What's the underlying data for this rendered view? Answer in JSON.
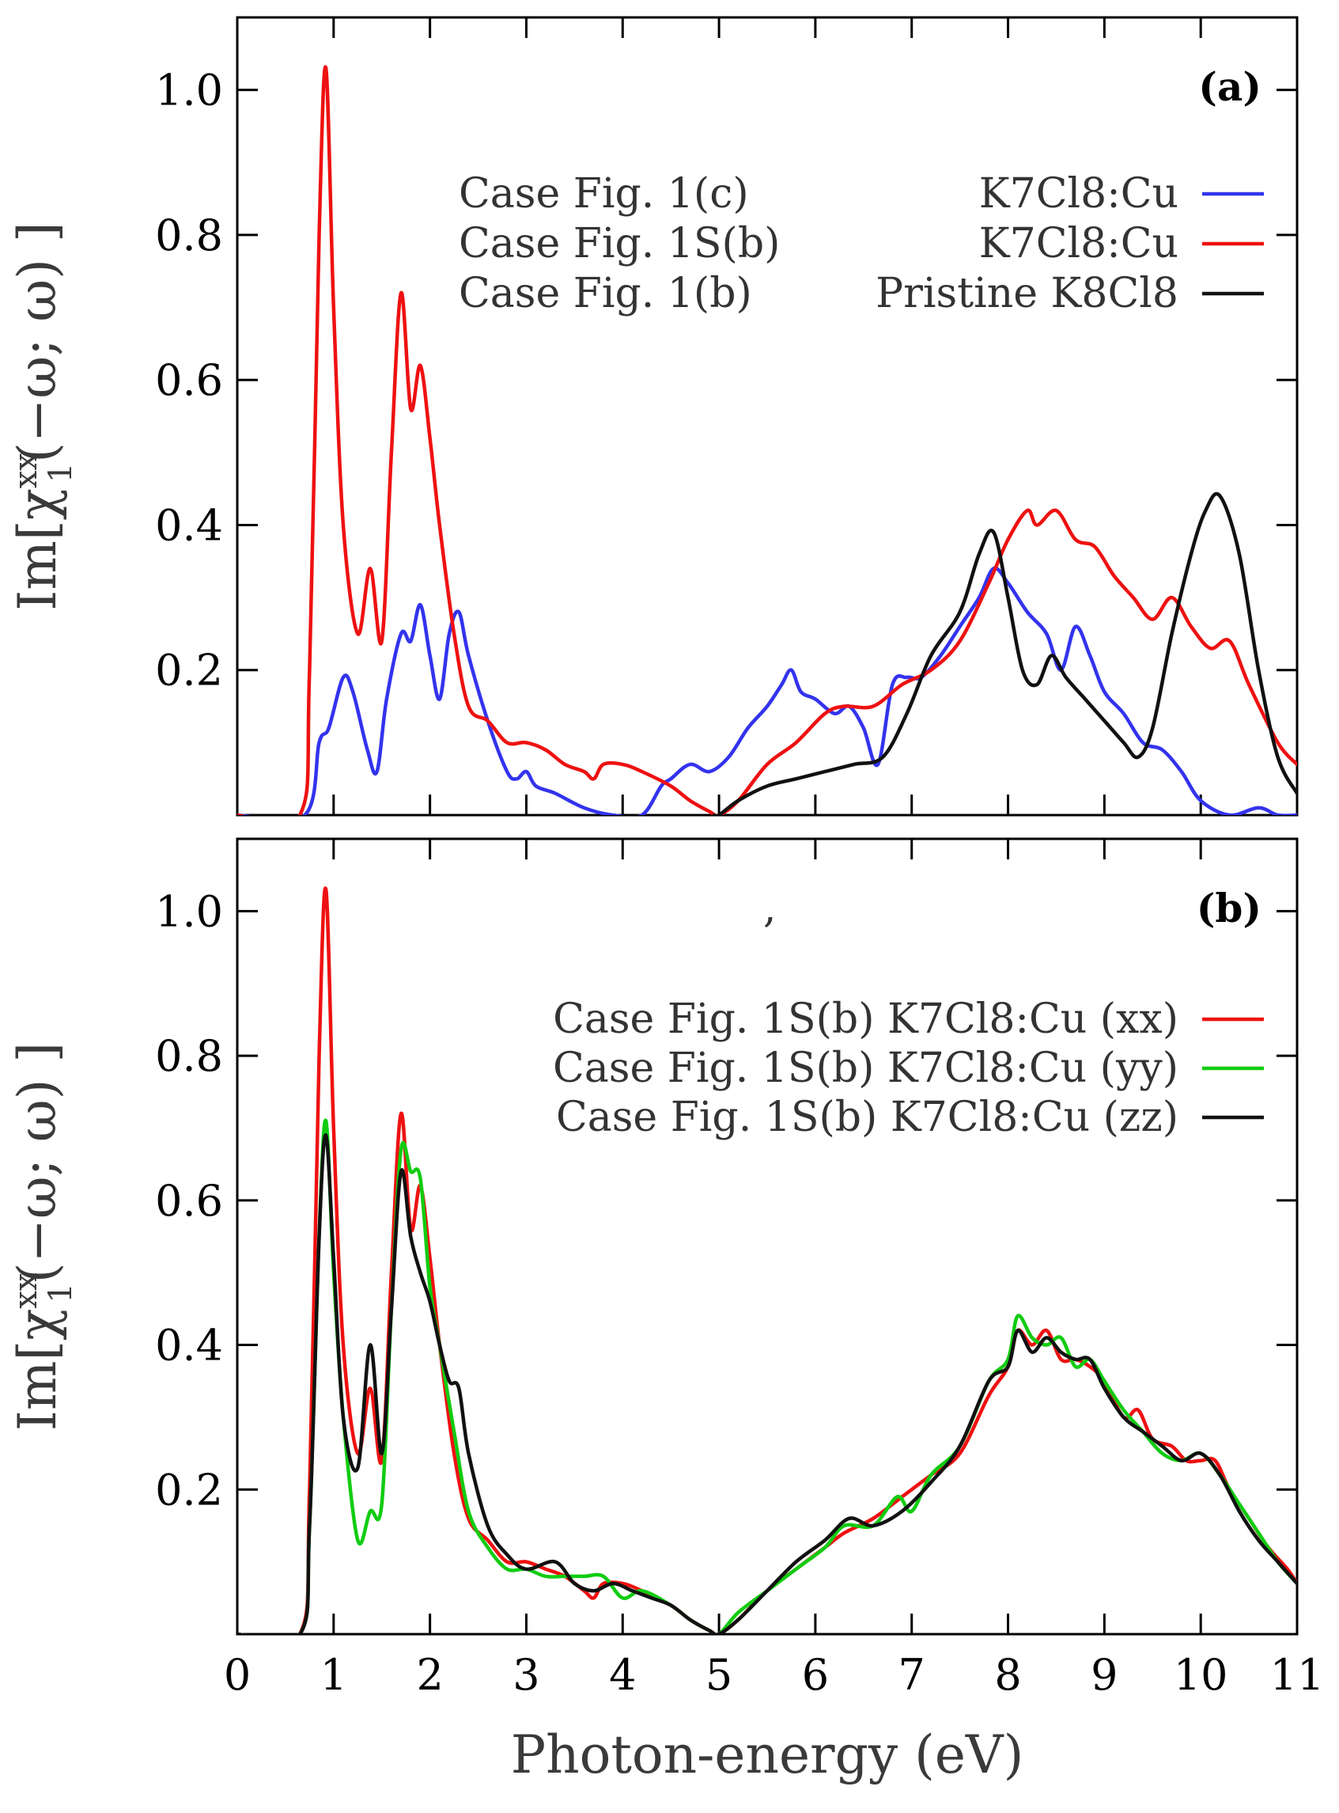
{
  "chart_data": [
    {
      "type": "line",
      "panel_label": "(a)",
      "xlim": [
        0,
        11
      ],
      "ylim": [
        0,
        1.1
      ],
      "ylabel_lines": [
        "Im[χ",
        "xx",
        "1",
        "(−ω; ω) ]"
      ],
      "yticks": [
        0.2,
        0.4,
        0.6,
        0.8,
        1.0
      ],
      "ytick_labels": [
        "0.2",
        "0.4",
        "0.6",
        "0.8",
        "1.0"
      ],
      "legend_position": "top-right",
      "series": [
        {
          "name": "Case Fig. 1(c) K7Cl8:Cu",
          "legend_case": "Case Fig. 1(c)",
          "legend_material": "K7Cl8:Cu",
          "color": "#3333ee",
          "x": [
            0,
            0.7,
            0.85,
            0.95,
            1.1,
            1.2,
            1.35,
            1.45,
            1.55,
            1.7,
            1.8,
            1.9,
            2.0,
            2.1,
            2.2,
            2.3,
            2.4,
            2.6,
            2.8,
            2.9,
            3.0,
            3.1,
            3.3,
            3.6,
            3.9,
            4.2,
            4.4,
            4.5,
            4.7,
            4.9,
            5.1,
            5.3,
            5.5,
            5.65,
            5.75,
            5.85,
            6.0,
            6.2,
            6.35,
            6.5,
            6.65,
            6.8,
            6.95,
            7.1,
            7.3,
            7.5,
            7.7,
            7.85,
            8.0,
            8.2,
            8.4,
            8.55,
            8.7,
            8.85,
            9.0,
            9.2,
            9.4,
            9.6,
            9.8,
            10.0,
            10.3,
            10.6,
            10.8,
            11.0
          ],
          "y": [
            0,
            0,
            0.1,
            0.12,
            0.19,
            0.17,
            0.09,
            0.06,
            0.16,
            0.25,
            0.24,
            0.29,
            0.22,
            0.16,
            0.25,
            0.28,
            0.22,
            0.13,
            0.06,
            0.05,
            0.06,
            0.04,
            0.03,
            0.01,
            0.0,
            0.0,
            0.04,
            0.05,
            0.07,
            0.06,
            0.08,
            0.12,
            0.15,
            0.18,
            0.2,
            0.17,
            0.16,
            0.14,
            0.15,
            0.12,
            0.07,
            0.18,
            0.19,
            0.19,
            0.22,
            0.26,
            0.3,
            0.34,
            0.32,
            0.28,
            0.25,
            0.2,
            0.26,
            0.22,
            0.17,
            0.14,
            0.1,
            0.09,
            0.06,
            0.02,
            0.0,
            0.01,
            0.0,
            0.0
          ]
        },
        {
          "name": "Case Fig. 1S(b) K7Cl8:Cu",
          "legend_case": "Case Fig. 1S(b)",
          "legend_material": "K7Cl8:Cu",
          "color": "#ee1111",
          "x": [
            0,
            0.65,
            0.75,
            0.85,
            0.92,
            1.0,
            1.1,
            1.25,
            1.38,
            1.5,
            1.6,
            1.7,
            1.8,
            1.9,
            2.0,
            2.1,
            2.25,
            2.4,
            2.6,
            2.8,
            3.0,
            3.2,
            3.4,
            3.6,
            3.7,
            3.8,
            4.0,
            4.2,
            4.5,
            4.7,
            4.9,
            5.0,
            5.2,
            5.5,
            5.8,
            6.1,
            6.3,
            6.6,
            6.9,
            7.2,
            7.5,
            7.8,
            8.0,
            8.2,
            8.3,
            8.5,
            8.7,
            8.9,
            9.1,
            9.3,
            9.5,
            9.7,
            9.9,
            10.1,
            10.3,
            10.5,
            10.8,
            11.0
          ],
          "y": [
            0,
            0,
            0.2,
            0.8,
            1.03,
            0.7,
            0.4,
            0.25,
            0.34,
            0.24,
            0.5,
            0.72,
            0.56,
            0.62,
            0.52,
            0.4,
            0.25,
            0.15,
            0.13,
            0.1,
            0.1,
            0.09,
            0.07,
            0.06,
            0.05,
            0.07,
            0.07,
            0.06,
            0.04,
            0.02,
            0.005,
            0.0,
            0.02,
            0.07,
            0.1,
            0.14,
            0.15,
            0.15,
            0.18,
            0.2,
            0.24,
            0.32,
            0.38,
            0.42,
            0.4,
            0.42,
            0.38,
            0.37,
            0.33,
            0.3,
            0.27,
            0.3,
            0.26,
            0.23,
            0.24,
            0.18,
            0.1,
            0.07
          ]
        },
        {
          "name": "Case Fig. 1(b) Pristine K8Cl8",
          "legend_case": "Case Fig. 1(b)",
          "legend_material": "Pristine K8Cl8",
          "color": "#111111",
          "x": [
            4.95,
            5.0,
            5.2,
            5.5,
            5.8,
            6.1,
            6.4,
            6.7,
            6.95,
            7.2,
            7.5,
            7.7,
            7.85,
            8.0,
            8.15,
            8.3,
            8.45,
            8.6,
            8.8,
            9.0,
            9.2,
            9.35,
            9.5,
            9.7,
            9.9,
            10.05,
            10.2,
            10.4,
            10.6,
            10.8,
            11.0
          ],
          "y": [
            0,
            0.0,
            0.02,
            0.04,
            0.05,
            0.06,
            0.07,
            0.08,
            0.14,
            0.22,
            0.28,
            0.36,
            0.39,
            0.3,
            0.2,
            0.18,
            0.22,
            0.19,
            0.16,
            0.13,
            0.1,
            0.08,
            0.12,
            0.25,
            0.36,
            0.42,
            0.44,
            0.36,
            0.2,
            0.08,
            0.03
          ]
        }
      ]
    },
    {
      "type": "line",
      "panel_label": "(b)",
      "stray_mark": ",",
      "xlim": [
        0,
        11
      ],
      "ylim": [
        0,
        1.1
      ],
      "xlabel": "Photon-energy (eV)",
      "xticks": [
        0,
        1,
        2,
        3,
        4,
        5,
        6,
        7,
        8,
        9,
        10,
        11
      ],
      "xtick_labels": [
        "0",
        "1",
        "2",
        "3",
        "4",
        "5",
        "6",
        "7",
        "8",
        "9",
        "10",
        "11"
      ],
      "ylabel_lines": [
        "Im[χ",
        "xx",
        "1",
        "(−ω; ω) ]"
      ],
      "yticks": [
        0.2,
        0.4,
        0.6,
        0.8,
        1.0
      ],
      "ytick_labels": [
        "0.2",
        "0.4",
        "0.6",
        "0.8",
        "1.0"
      ],
      "legend_position": "top-right",
      "series": [
        {
          "name": "Case Fig. 1S(b) K7Cl8:Cu (xx)",
          "legend_case": "Case Fig. 1S(b)",
          "legend_material": "K7Cl8:Cu (xx)",
          "color": "#ee1111",
          "x": [
            0,
            0.65,
            0.75,
            0.85,
            0.92,
            1.0,
            1.1,
            1.25,
            1.38,
            1.5,
            1.6,
            1.7,
            1.8,
            1.9,
            2.0,
            2.1,
            2.25,
            2.4,
            2.6,
            2.8,
            3.0,
            3.2,
            3.4,
            3.6,
            3.7,
            3.8,
            4.0,
            4.2,
            4.5,
            4.7,
            4.9,
            5.0,
            5.2,
            5.5,
            5.8,
            6.1,
            6.3,
            6.6,
            6.9,
            7.2,
            7.5,
            7.8,
            8.0,
            8.1,
            8.25,
            8.4,
            8.55,
            8.7,
            8.85,
            9.0,
            9.2,
            9.35,
            9.5,
            9.7,
            9.85,
            10.0,
            10.15,
            10.3,
            10.5,
            10.7,
            10.9,
            11.0
          ],
          "y": [
            0,
            0,
            0.2,
            0.8,
            1.03,
            0.7,
            0.4,
            0.25,
            0.34,
            0.24,
            0.5,
            0.72,
            0.56,
            0.62,
            0.52,
            0.4,
            0.25,
            0.16,
            0.13,
            0.1,
            0.1,
            0.09,
            0.08,
            0.06,
            0.05,
            0.07,
            0.07,
            0.06,
            0.04,
            0.02,
            0.005,
            0.0,
            0.02,
            0.06,
            0.09,
            0.12,
            0.14,
            0.16,
            0.19,
            0.22,
            0.25,
            0.33,
            0.37,
            0.42,
            0.4,
            0.42,
            0.38,
            0.38,
            0.37,
            0.35,
            0.3,
            0.31,
            0.27,
            0.26,
            0.24,
            0.24,
            0.24,
            0.2,
            0.16,
            0.12,
            0.09,
            0.07
          ]
        },
        {
          "name": "Case Fig. 1S(b) K7Cl8:Cu (yy)",
          "legend_case": "Case Fig. 1S(b)",
          "legend_material": "K7Cl8:Cu (yy)",
          "color": "#11cc11",
          "x": [
            0,
            0.65,
            0.75,
            0.85,
            0.92,
            1.0,
            1.1,
            1.25,
            1.38,
            1.5,
            1.6,
            1.7,
            1.8,
            1.9,
            2.0,
            2.1,
            2.25,
            2.4,
            2.6,
            2.8,
            3.0,
            3.2,
            3.4,
            3.6,
            3.8,
            4.0,
            4.2,
            4.5,
            4.7,
            4.9,
            5.0,
            5.2,
            5.5,
            5.8,
            6.1,
            6.3,
            6.6,
            6.85,
            7.0,
            7.2,
            7.5,
            7.8,
            8.0,
            8.1,
            8.25,
            8.4,
            8.55,
            8.7,
            8.85,
            9.0,
            9.2,
            9.4,
            9.6,
            9.8,
            10.0,
            10.2,
            10.4,
            10.6,
            10.8,
            11.0
          ],
          "y": [
            0,
            0,
            0.15,
            0.55,
            0.71,
            0.5,
            0.3,
            0.13,
            0.17,
            0.18,
            0.45,
            0.67,
            0.64,
            0.63,
            0.48,
            0.4,
            0.28,
            0.17,
            0.12,
            0.09,
            0.09,
            0.08,
            0.08,
            0.08,
            0.08,
            0.05,
            0.06,
            0.04,
            0.02,
            0.005,
            0.0,
            0.03,
            0.06,
            0.09,
            0.12,
            0.15,
            0.15,
            0.19,
            0.17,
            0.22,
            0.26,
            0.35,
            0.38,
            0.44,
            0.41,
            0.4,
            0.41,
            0.37,
            0.38,
            0.35,
            0.31,
            0.28,
            0.25,
            0.24,
            0.25,
            0.22,
            0.18,
            0.14,
            0.1,
            0.07
          ]
        },
        {
          "name": "Case Fig. 1S(b) K7Cl8:Cu (zz)",
          "legend_case": "Case Fig. 1S(b)",
          "legend_material": "K7Cl8:Cu (zz)",
          "color": "#111111",
          "x": [
            0,
            0.65,
            0.75,
            0.85,
            0.92,
            1.0,
            1.1,
            1.25,
            1.38,
            1.5,
            1.6,
            1.7,
            1.8,
            1.9,
            2.0,
            2.1,
            2.2,
            2.3,
            2.4,
            2.6,
            2.8,
            3.0,
            3.3,
            3.5,
            3.7,
            3.9,
            4.1,
            4.3,
            4.5,
            4.7,
            4.9,
            5.0,
            5.2,
            5.5,
            5.8,
            6.1,
            6.35,
            6.6,
            6.9,
            7.2,
            7.5,
            7.8,
            8.0,
            8.1,
            8.25,
            8.4,
            8.55,
            8.7,
            8.85,
            9.0,
            9.2,
            9.4,
            9.6,
            9.8,
            10.0,
            10.2,
            10.4,
            10.6,
            10.8,
            11.0
          ],
          "y": [
            0,
            0,
            0.15,
            0.55,
            0.69,
            0.52,
            0.3,
            0.23,
            0.4,
            0.25,
            0.45,
            0.64,
            0.55,
            0.5,
            0.46,
            0.4,
            0.35,
            0.34,
            0.25,
            0.15,
            0.11,
            0.09,
            0.1,
            0.07,
            0.06,
            0.07,
            0.06,
            0.05,
            0.04,
            0.02,
            0.005,
            0.0,
            0.02,
            0.06,
            0.1,
            0.13,
            0.16,
            0.15,
            0.17,
            0.21,
            0.26,
            0.35,
            0.37,
            0.42,
            0.39,
            0.41,
            0.39,
            0.38,
            0.38,
            0.34,
            0.3,
            0.28,
            0.26,
            0.24,
            0.25,
            0.22,
            0.17,
            0.13,
            0.1,
            0.07
          ]
        }
      ]
    }
  ]
}
